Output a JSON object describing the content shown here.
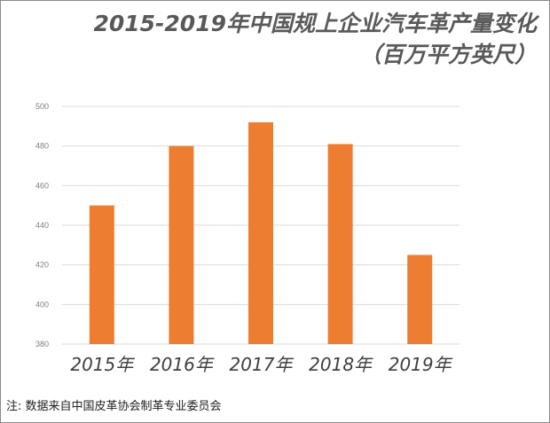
{
  "chart_data": {
    "type": "bar",
    "title": "2015-2019年中国规上企业汽车革产量变化",
    "subtitle": "（百万平方英尺）",
    "categories": [
      "2015年",
      "2016年",
      "2017年",
      "2018年",
      "2019年"
    ],
    "values": [
      450,
      480,
      492,
      481,
      425
    ],
    "ylim": [
      380,
      500
    ],
    "yticks": [
      380,
      400,
      420,
      440,
      460,
      480,
      500
    ],
    "xlabel": "",
    "ylabel": "",
    "grid": true,
    "bar_color": "#ED7D31"
  },
  "note": "注: 数据来自中国皮革协会制革专业委员会"
}
